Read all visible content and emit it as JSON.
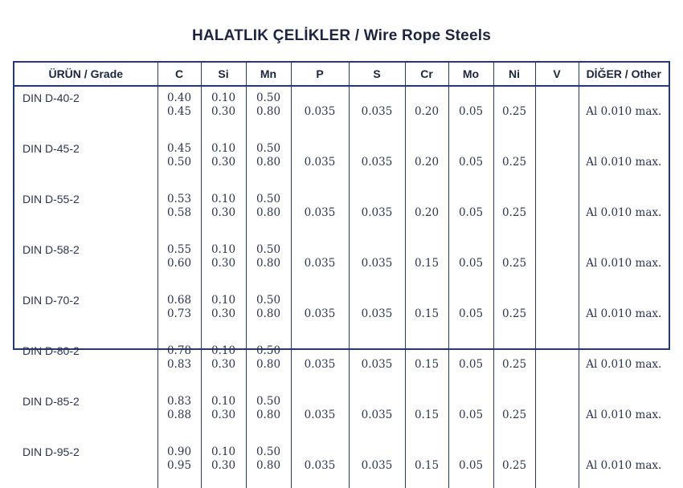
{
  "title": "HALATLIK ÇELİKLER / Wire Rope Steels",
  "headers": [
    "ÜRÜN / Grade",
    "C",
    "Si",
    "Mn",
    "P",
    "S",
    "Cr",
    "Mo",
    "Ni",
    "V",
    "DİĞER / Other"
  ],
  "rows": [
    {
      "grade": "DIN D-40-2",
      "c": [
        "0.40",
        "0.45"
      ],
      "si": [
        "0.10",
        "0.30"
      ],
      "mn": [
        "0.50",
        "0.80"
      ],
      "p": "0.035",
      "s": "0.035",
      "cr": "0.20",
      "mo": "0.05",
      "ni": "0.25",
      "v": "",
      "other": "Al 0.010 max."
    },
    {
      "grade": "DIN D-45-2",
      "c": [
        "0.45",
        "0.50"
      ],
      "si": [
        "0.10",
        "0.30"
      ],
      "mn": [
        "0.50",
        "0.80"
      ],
      "p": "0.035",
      "s": "0.035",
      "cr": "0.20",
      "mo": "0.05",
      "ni": "0.25",
      "v": "",
      "other": "Al 0.010 max."
    },
    {
      "grade": "DIN D-55-2",
      "c": [
        "0.53",
        "0.58"
      ],
      "si": [
        "0.10",
        "0.30"
      ],
      "mn": [
        "0.50",
        "0.80"
      ],
      "p": "0.035",
      "s": "0.035",
      "cr": "0.20",
      "mo": "0.05",
      "ni": "0.25",
      "v": "",
      "other": "Al 0.010 max."
    },
    {
      "grade": "DIN D-58-2",
      "c": [
        "0.55",
        "0.60"
      ],
      "si": [
        "0.10",
        "0.30"
      ],
      "mn": [
        "0.50",
        "0.80"
      ],
      "p": "0.035",
      "s": "0.035",
      "cr": "0.15",
      "mo": "0.05",
      "ni": "0.25",
      "v": "",
      "other": "Al 0.010 max."
    },
    {
      "grade": "DIN D-70-2",
      "c": [
        "0.68",
        "0.73"
      ],
      "si": [
        "0.10",
        "0.30"
      ],
      "mn": [
        "0.50",
        "0.80"
      ],
      "p": "0.035",
      "s": "0.035",
      "cr": "0.15",
      "mo": "0.05",
      "ni": "0.25",
      "v": "",
      "other": "Al 0.010 max."
    },
    {
      "grade": "DIN D-80-2",
      "c": [
        "0.78",
        "0.83"
      ],
      "si": [
        "0.10",
        "0.30"
      ],
      "mn": [
        "0.50",
        "0.80"
      ],
      "p": "0.035",
      "s": "0.035",
      "cr": "0.15",
      "mo": "0.05",
      "ni": "0.25",
      "v": "",
      "other": "Al 0.010 max."
    },
    {
      "grade": "DIN D-85-2",
      "c": [
        "0.83",
        "0.88"
      ],
      "si": [
        "0.10",
        "0.30"
      ],
      "mn": [
        "0.50",
        "0.80"
      ],
      "p": "0.035",
      "s": "0.035",
      "cr": "0.15",
      "mo": "0.05",
      "ni": "0.25",
      "v": "",
      "other": "Al 0.010 max."
    },
    {
      "grade": "DIN D-95-2",
      "c": [
        "0.90",
        "0.95"
      ],
      "si": [
        "0.10",
        "0.30"
      ],
      "mn": [
        "0.50",
        "0.80"
      ],
      "p": "0.035",
      "s": "0.035",
      "cr": "0.15",
      "mo": "0.05",
      "ni": "0.25",
      "v": "",
      "other": "Al 0.010 max."
    }
  ]
}
